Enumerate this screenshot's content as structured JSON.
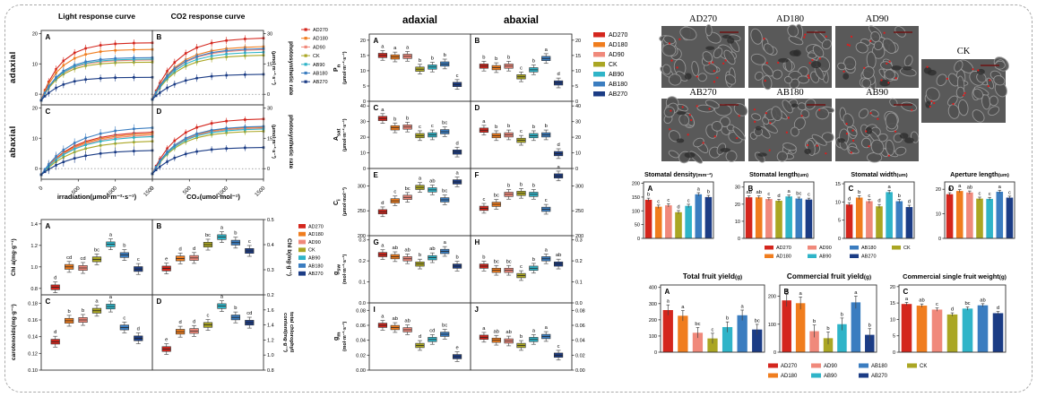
{
  "groups": [
    "AD270",
    "AD180",
    "AD90",
    "CK",
    "AB90",
    "AB180",
    "AB270"
  ],
  "colors": {
    "AD270": "#d4261d",
    "AD180": "#f07d1e",
    "AD90": "#f0897b",
    "CK": "#aaa623",
    "AB90": "#2fb4c8",
    "AB180": "#3b7dc0",
    "AB270": "#1b3c85"
  },
  "stomata_marker_color": "#e01b1b",
  "legend_grid": [
    [
      "AD270",
      "AD180"
    ],
    [
      "AD90",
      "AB90"
    ],
    [
      "AB180",
      "AB270"
    ],
    [
      "CK"
    ]
  ],
  "chart_data": {
    "gas": {
      "type": "line",
      "column_titles": [
        "Light response curve",
        "CO2 response curve"
      ],
      "row_labels": [
        "adaxial",
        "abaxial"
      ],
      "right_label_main": "photosynthetic rate",
      "right_label_unit": "(μmol·m⁻²·s⁻¹)",
      "x_axis_titles": [
        "irradiation(μmol·m⁻²·s⁻¹)",
        "CO₂(umol·mol⁻¹)"
      ],
      "x_tick_labels": [
        "0",
        "500",
        "1000",
        "1500"
      ],
      "x_samples": [
        0,
        50,
        100,
        200,
        300,
        450,
        600,
        800,
        1000,
        1250,
        1500
      ],
      "panels": [
        {
          "panel": "A",
          "row": 0,
          "col": 0,
          "side": "left",
          "ticks": [
            "0",
            "10",
            "20"
          ],
          "dom": [
            -3.5,
            21
          ],
          "tau": 260,
          "start": -2,
          "err": 1.2,
          "sat": [
            17,
            14.8,
            11.3,
            10.6,
            11.6,
            12.1,
            5.6
          ]
        },
        {
          "panel": "B",
          "row": 0,
          "col": 1,
          "side": "right",
          "ticks": [
            "0",
            "15",
            "30"
          ],
          "dom": [
            -5.2,
            31.5
          ],
          "tau": 330,
          "start": -2.5,
          "err": 1.8,
          "sat": [
            28,
            23.8,
            22.3,
            19.5,
            21,
            22.8,
            10
          ]
        },
        {
          "panel": "C",
          "row": 1,
          "col": 0,
          "side": "left",
          "ticks": [
            "0",
            "10",
            "20"
          ],
          "dom": [
            -3.5,
            21
          ],
          "tau": 420,
          "start": -2,
          "err": 1.5,
          "sat": [
            12.4,
            11.9,
            11.4,
            9.3,
            10.9,
            13.9,
            6.2
          ]
        },
        {
          "panel": "D",
          "row": 1,
          "col": 1,
          "side": "right",
          "ticks": [
            "0",
            "15",
            "30"
          ],
          "dom": [
            -5.2,
            31.5
          ],
          "tau": 330,
          "start": -2.5,
          "err": 1.6,
          "sat": [
            24.8,
            20.8,
            20.3,
            18.7,
            19.8,
            21.1,
            10.6
          ]
        }
      ]
    },
    "pigments": {
      "type": "box",
      "left_labels": [
        "Chl a(mg·g⁻¹)",
        "carotenoids(mg·g⁻¹)"
      ],
      "right_labels": [
        "Chl b(mg·g⁻¹)",
        "total chlorophyll content(mg·g⁻¹)"
      ],
      "panels": [
        {
          "panel": "A",
          "row": 0,
          "col": 0,
          "side": "left",
          "ticks": [
            "0.8",
            "1.0",
            "1.2",
            "1.4"
          ],
          "dom": [
            0.74,
            1.44
          ],
          "values": [
            0.81,
            1.0,
            0.99,
            1.07,
            1.21,
            1.11,
            0.98
          ],
          "letters": [
            "d",
            "cd",
            "cd",
            "bc",
            "a",
            "b",
            "c"
          ]
        },
        {
          "panel": "B",
          "row": 0,
          "col": 1,
          "side": "right",
          "ticks": [
            "0.2",
            "0.3",
            "0.4",
            "0.5"
          ],
          "dom": [
            0.2,
            0.5
          ],
          "values": [
            0.305,
            0.345,
            0.347,
            0.4,
            0.43,
            0.408,
            0.375
          ],
          "letters": [
            "e",
            "d",
            "d",
            "bc",
            "a",
            "b",
            "c"
          ]
        },
        {
          "panel": "C",
          "row": 1,
          "col": 0,
          "side": "left",
          "ticks": [
            "0.10",
            "0.12",
            "0.14",
            "0.16",
            "0.18"
          ],
          "dom": [
            0.1,
            0.19
          ],
          "values": [
            0.134,
            0.159,
            0.16,
            0.171,
            0.176,
            0.151,
            0.138
          ],
          "letters": [
            "d",
            "b",
            "b",
            "a",
            "a",
            "c",
            "d"
          ]
        },
        {
          "panel": "D",
          "row": 1,
          "col": 1,
          "side": "right",
          "ticks": [
            "0.8",
            "1.0",
            "1.2",
            "1.4",
            "1.6"
          ],
          "dom": [
            0.8,
            1.8
          ],
          "values": [
            1.08,
            1.31,
            1.32,
            1.4,
            1.65,
            1.5,
            1.43
          ],
          "letters": [
            "e",
            "d",
            "d",
            "c",
            "a",
            "b",
            "cd"
          ]
        }
      ]
    },
    "leaf": {
      "type": "box",
      "column_titles": [
        "adaxial",
        "abaxial"
      ],
      "rows": [
        {
          "sym": "P",
          "sub": "n",
          "unit": "(μmol·m⁻²·s⁻¹)",
          "ticks": [
            "0",
            "5",
            "10",
            "15",
            "20"
          ],
          "dom": [
            0,
            22
          ],
          "adaxial": {
            "panel": "A",
            "values": [
              15,
              14.5,
              14.7,
              10.5,
              11.2,
              12.2,
              5.5
            ],
            "letters": [
              "a",
              "a",
              "a",
              "b",
              "b",
              "b",
              "c"
            ]
          },
          "abaxial": {
            "panel": "B",
            "values": [
              11.5,
              11,
              11.5,
              8,
              10.3,
              14,
              6
            ],
            "letters": [
              "b",
              "b",
              "b",
              "c",
              "b",
              "a",
              "d"
            ]
          }
        },
        {
          "sym": "A",
          "sub": "sat",
          "unit": "(μmol·m⁻²·s⁻¹)",
          "ticks": [
            "0",
            "10",
            "20",
            "30",
            "40"
          ],
          "dom": [
            0,
            43
          ],
          "adaxial": {
            "panel": "C",
            "values": [
              32,
              26,
              26.5,
              21,
              21.5,
              23.5,
              10.5
            ],
            "letters": [
              "a",
              "b",
              "b",
              "c",
              "c",
              "bc",
              "d"
            ]
          },
          "abaxial": {
            "panel": "D",
            "values": [
              24.5,
              21,
              21.5,
              18,
              21,
              21.5,
              9.5
            ],
            "letters": [
              "a",
              "b",
              "b",
              "c",
              "b",
              "b",
              "d"
            ]
          }
        },
        {
          "sym": "C",
          "sub": "i",
          "unit": "(μmol·mol⁻¹)",
          "ticks": [
            "200",
            "250",
            "300"
          ],
          "dom": [
            200,
            335
          ],
          "adaxial": {
            "panel": "E",
            "values": [
              248,
              270,
              277,
              297,
              292,
              272,
              308
            ],
            "letters": [
              "d",
              "c",
              "bc",
              "a",
              "ab",
              "bc",
              "a"
            ]
          },
          "abaxial": {
            "panel": "F",
            "values": [
              255,
              263,
              283,
              285,
              283,
              253,
              320
            ],
            "letters": [
              "c",
              "bc",
              "b",
              "b",
              "b",
              "c",
              "a"
            ]
          }
        },
        {
          "sym": "g",
          "sub": "sw",
          "unit": "(mol·m⁻²·s⁻¹)",
          "ticks": [
            "0.0",
            "0.1",
            "0.2",
            "0.3"
          ],
          "dom": [
            0,
            0.32
          ],
          "adaxial": {
            "panel": "G",
            "values": [
              0.23,
              0.22,
              0.21,
              0.185,
              0.215,
              0.245,
              0.175
            ],
            "letters": [
              "a",
              "ab",
              "ab",
              "b",
              "ab",
              "a",
              "b"
            ]
          },
          "abaxial": {
            "panel": "H",
            "values": [
              0.175,
              0.155,
              0.155,
              0.13,
              0.165,
              0.21,
              0.185
            ],
            "letters": [
              "b",
              "bc",
              "bc",
              "c",
              "b",
              "a",
              "ab"
            ]
          }
        },
        {
          "sym": "g",
          "sub": "m",
          "unit": "(mol·m⁻²·s⁻¹)",
          "ticks": [
            "0.00",
            "0.02",
            "0.04",
            "0.06",
            "0.08"
          ],
          "dom": [
            0,
            0.09
          ],
          "adaxial": {
            "panel": "I",
            "values": [
              0.06,
              0.057,
              0.054,
              0.033,
              0.041,
              0.048,
              0.018
            ],
            "letters": [
              "a",
              "ab",
              "ab",
              "d",
              "cd",
              "bc",
              "e"
            ]
          },
          "abaxial": {
            "panel": "J",
            "values": [
              0.044,
              0.04,
              0.039,
              0.033,
              0.041,
              0.045,
              0.02
            ],
            "letters": [
              "a",
              "ab",
              "ab",
              "b",
              "a",
              "a",
              "c"
            ]
          }
        }
      ]
    },
    "stomata": {
      "type": "bar",
      "charts": [
        {
          "panel": "A",
          "title": "Stomatal density",
          "unit": "(mm⁻²)",
          "ticks": [
            "0",
            "50",
            "100",
            "150",
            "200"
          ],
          "dom": [
            0,
            205
          ],
          "values": [
            140,
            115,
            120,
            95,
            118,
            160,
            150
          ],
          "letters": [
            "b",
            "c",
            "c",
            "d",
            "c",
            "a",
            "b"
          ],
          "err": 6
        },
        {
          "panel": "B",
          "title": "Stomatal length",
          "unit": "(um)",
          "ticks": [
            "0",
            "10",
            "20",
            "30"
          ],
          "dom": [
            0,
            33
          ],
          "values": [
            24,
            24,
            23,
            22,
            24.5,
            23.3,
            22.7
          ],
          "letters": [
            "ab",
            "ab",
            "c",
            "d",
            "a",
            "bc",
            "c"
          ],
          "err": 0.8
        },
        {
          "panel": "C",
          "title": "Stomatal width",
          "unit": "(um)",
          "ticks": [
            "0",
            "5",
            "10",
            "15"
          ],
          "dom": [
            0,
            15.5
          ],
          "values": [
            9.3,
            11.2,
            10.2,
            8.8,
            12.7,
            10.2,
            8.6
          ],
          "letters": [
            "d",
            "b",
            "c",
            "d",
            "a",
            "b",
            "d"
          ],
          "err": 0.5
        },
        {
          "panel": "D",
          "title": "Aperture length",
          "unit": "(um)",
          "ticks": [
            "0",
            "10",
            "20"
          ],
          "dom": [
            0,
            23
          ],
          "values": [
            18,
            19.3,
            18.7,
            16.2,
            16.1,
            19,
            16.6
          ],
          "letters": [
            "b",
            "a",
            "ab",
            "c",
            "c",
            "a",
            "c"
          ],
          "err": 0.6
        }
      ]
    },
    "fruit": {
      "type": "bar",
      "charts": [
        {
          "panel": "A",
          "title": "Total fruit yield",
          "unit": "(g)",
          "ticks": [
            "0",
            "100",
            "200",
            "300",
            "400"
          ],
          "dom": [
            0,
            415
          ],
          "values": [
            260,
            225,
            120,
            85,
            155,
            228,
            140
          ],
          "letters": [
            "a",
            "a",
            "bc",
            "c",
            "b",
            "a",
            "bc"
          ],
          "err": 32
        },
        {
          "panel": "B",
          "title": "Commercial fruit yield",
          "unit": "(g)",
          "ticks": [
            "0",
            "100",
            "200"
          ],
          "dom": [
            0,
            240
          ],
          "values": [
            185,
            175,
            75,
            50,
            100,
            178,
            62
          ],
          "letters": [
            "a",
            "a",
            "b",
            "b",
            "b",
            "a",
            "b"
          ],
          "err": 22
        },
        {
          "panel": "C",
          "title": "Commercial single fruit weight",
          "unit": "(g)",
          "ticks": [
            "0",
            "5",
            "10",
            "15",
            "20"
          ],
          "dom": [
            0,
            20.5
          ],
          "values": [
            14.7,
            14.2,
            13,
            11.5,
            13.3,
            14.3,
            11.9
          ],
          "letters": [
            "a",
            "ab",
            "c",
            "d",
            "bc",
            "ab",
            "d"
          ],
          "err": 0.5
        }
      ]
    }
  },
  "micrographs": {
    "labels_row1": [
      "AD270",
      "AD180",
      "AD90"
    ],
    "labels_row2": [
      "AB270",
      "AB180",
      "AB90"
    ],
    "label_ck": "CK"
  }
}
